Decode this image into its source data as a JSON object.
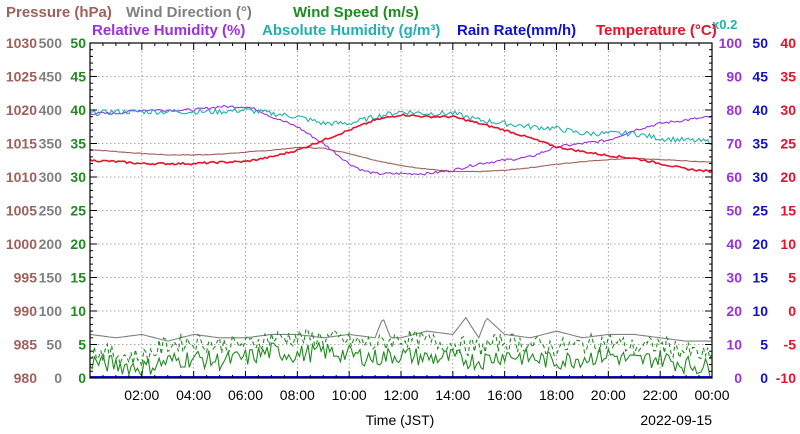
{
  "chart_data": {
    "type": "line",
    "date_label": "2022-09-15",
    "xlabel": "Time (JST)",
    "x_ticks": [
      "02:00",
      "04:00",
      "06:00",
      "08:00",
      "10:00",
      "12:00",
      "14:00",
      "16:00",
      "18:00",
      "20:00",
      "22:00",
      "00:00"
    ],
    "xlim_hours": [
      0,
      24
    ],
    "grid": true,
    "legend": [
      {
        "key": "pressure",
        "label": "Pressure (hPa)",
        "color": "#a0605a"
      },
      {
        "key": "wind_direction",
        "label": "Wind Direction (°)",
        "color": "#808080"
      },
      {
        "key": "wind_speed",
        "label": "Wind Speed (m/s)",
        "color": "#1e8c1e"
      },
      {
        "key": "relative_humidity",
        "label": "Relative Humidity (%)",
        "color": "#9b30e0"
      },
      {
        "key": "absolute_humidity",
        "label": "Absolute Humidity (g/m³)",
        "color": "#20b0b0"
      },
      {
        "key": "absolute_humidity_scale",
        "label": "x0.2",
        "color": "#20b0b0"
      },
      {
        "key": "rain_rate",
        "label": "Rain Rate(mm/h)",
        "color": "#1010d0"
      },
      {
        "key": "temperature",
        "label": "Temperature (°C)",
        "color": "#e8102a"
      }
    ],
    "axes": {
      "pressure": {
        "ticks": [
          "980",
          "985",
          "990",
          "995",
          "1000",
          "1005",
          "1010",
          "1015",
          "1020",
          "1025",
          "1030"
        ],
        "range": [
          980,
          1030
        ],
        "color": "#a0605a"
      },
      "wind_direction": {
        "ticks": [
          "0",
          "50",
          "100",
          "150",
          "200",
          "250",
          "300",
          "350",
          "400",
          "450",
          "500"
        ],
        "range": [
          0,
          500
        ],
        "color": "#808080"
      },
      "wind_speed": {
        "ticks": [
          "0",
          "5",
          "10",
          "15",
          "20",
          "25",
          "30",
          "35",
          "40",
          "45",
          "50"
        ],
        "range": [
          0,
          50
        ],
        "color": "#1e8c1e"
      },
      "relative_humidity": {
        "ticks": [
          "0",
          "10",
          "20",
          "30",
          "40",
          "50",
          "60",
          "70",
          "80",
          "90",
          "100"
        ],
        "range": [
          0,
          100
        ],
        "color": "#9b30e0"
      },
      "rain_rate": {
        "ticks": [
          "0",
          "5",
          "10",
          "15",
          "20",
          "25",
          "30",
          "35",
          "40",
          "45",
          "50"
        ],
        "range": [
          0,
          50
        ],
        "color": "#1010d0"
      },
      "temperature": {
        "ticks": [
          "-10",
          "-5",
          "0",
          "5",
          "10",
          "15",
          "20",
          "25",
          "30",
          "35",
          "40"
        ],
        "range": [
          -10,
          40
        ],
        "color": "#e8102a"
      }
    },
    "series": [
      {
        "key": "pressure",
        "x": [
          0,
          1,
          2,
          3,
          4,
          5,
          6,
          7,
          8,
          9,
          10,
          11,
          12,
          13,
          14,
          15,
          16,
          17,
          18,
          19,
          20,
          21,
          22,
          23,
          24
        ],
        "y": [
          1014.1,
          1013.8,
          1013.5,
          1013.3,
          1013.3,
          1013.4,
          1013.7,
          1014.0,
          1014.4,
          1014.3,
          1013.5,
          1012.5,
          1011.7,
          1011.2,
          1010.8,
          1010.8,
          1011.0,
          1011.4,
          1011.9,
          1012.3,
          1012.6,
          1012.8,
          1012.6,
          1012.4,
          1012.2
        ]
      },
      {
        "key": "relative_humidity",
        "x": [
          0,
          1,
          2,
          3,
          4,
          5,
          6,
          6.5,
          7,
          8,
          9,
          10,
          10.5,
          11,
          12,
          13,
          14,
          15,
          16,
          17,
          18,
          19,
          20,
          21,
          22,
          23,
          24
        ],
        "y": [
          79,
          79,
          80,
          80,
          80,
          81,
          81,
          80,
          78,
          75,
          70,
          64,
          62,
          61,
          61,
          61,
          62,
          64,
          65,
          66,
          69,
          70,
          71,
          74,
          76,
          77,
          78
        ]
      },
      {
        "key": "absolute_humidity",
        "x": [
          0,
          1,
          2,
          3,
          4,
          5,
          6,
          7,
          8,
          9,
          10,
          11,
          12,
          13,
          14,
          15,
          16,
          17,
          18,
          19,
          20,
          21,
          22,
          23,
          24
        ],
        "y": [
          79,
          79.5,
          79.5,
          79.5,
          79.5,
          79.5,
          80,
          79,
          78,
          76,
          76,
          78,
          79.5,
          79,
          79,
          77,
          76,
          75,
          74.5,
          73,
          73,
          73,
          71.5,
          71,
          70.5
        ]
      },
      {
        "key": "temperature",
        "x": [
          0,
          1,
          2,
          3,
          4,
          5,
          6,
          7,
          8,
          9,
          10,
          11,
          12,
          13,
          14,
          15,
          16,
          17,
          18,
          19,
          20,
          21,
          22,
          23,
          24
        ],
        "y": [
          22.5,
          22.3,
          22.0,
          22.0,
          22.0,
          22.2,
          22.3,
          23.0,
          24.0,
          25.5,
          27.0,
          28.5,
          29.3,
          29.0,
          29.0,
          28.0,
          27.0,
          25.8,
          24.5,
          23.8,
          23.2,
          22.8,
          22.0,
          21.2,
          20.8
        ]
      },
      {
        "key": "wind_direction",
        "x": [
          0,
          1,
          2,
          3,
          4,
          5,
          6,
          7,
          8,
          9,
          10,
          11,
          11.3,
          11.6,
          12,
          13,
          14,
          14.5,
          15,
          15.3,
          16,
          17,
          18,
          19,
          20,
          21,
          22,
          23,
          24
        ],
        "y": [
          65,
          60,
          65,
          55,
          65,
          60,
          60,
          65,
          65,
          60,
          65,
          60,
          90,
          60,
          60,
          70,
          65,
          90,
          60,
          90,
          65,
          60,
          70,
          60,
          65,
          65,
          60,
          55,
          55
        ]
      },
      {
        "key": "wind_speed",
        "x": [
          0,
          1,
          2,
          3,
          4,
          5,
          6,
          7,
          8,
          9,
          10,
          11,
          12,
          13,
          14,
          15,
          16,
          17,
          18,
          19,
          20,
          21,
          22,
          23,
          24
        ],
        "y": [
          2.5,
          2,
          1.5,
          2.5,
          3,
          2.5,
          3,
          4,
          3.5,
          4,
          3.5,
          3,
          3.5,
          3,
          3,
          2.5,
          3.5,
          3,
          2.5,
          3,
          3.5,
          2.5,
          3,
          2,
          1.5
        ]
      },
      {
        "key": "wind_speed_max",
        "x": [
          0,
          1,
          2,
          3,
          4,
          5,
          6,
          7,
          8,
          9,
          10,
          11,
          12,
          13,
          14,
          15,
          16,
          17,
          18,
          19,
          20,
          21,
          22,
          23,
          24
        ],
        "y": [
          4,
          3.5,
          3,
          5,
          5.5,
          5,
          5,
          6,
          6,
          6,
          5.5,
          5,
          6,
          5.5,
          5,
          4.5,
          5.5,
          5,
          4.5,
          5,
          5.5,
          4.5,
          5,
          4,
          3
        ]
      }
    ]
  }
}
